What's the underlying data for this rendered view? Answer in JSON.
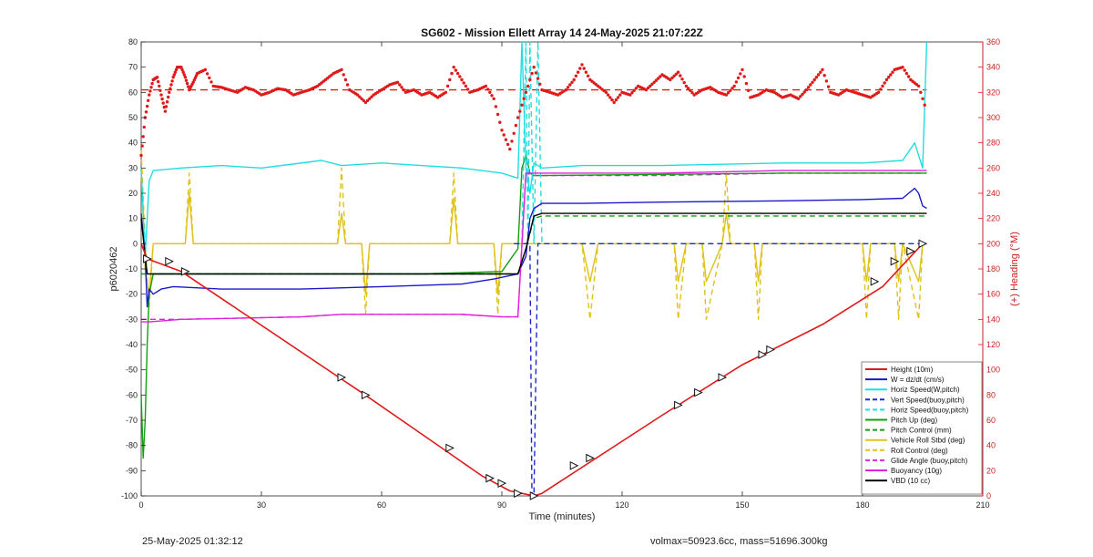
{
  "chart_data": {
    "type": "line",
    "title": "SG602 - Mission Ellett Array 14 24-May-2025 21:07:22Z",
    "xlabel": "Time (minutes)",
    "ylabel": "p6020462",
    "y2label": "(+) Heading (°M)",
    "xlim": [
      0,
      210
    ],
    "ylim": [
      -100,
      80
    ],
    "y2lim": [
      0,
      360
    ],
    "x_ticks": [
      0,
      30,
      60,
      90,
      120,
      150,
      180,
      210
    ],
    "y_ticks": [
      -100,
      -90,
      -80,
      -70,
      -60,
      -50,
      -40,
      -30,
      -20,
      -10,
      0,
      10,
      20,
      30,
      40,
      50,
      60,
      70,
      80
    ],
    "y2_ticks": [
      0,
      20,
      40,
      60,
      80,
      100,
      120,
      140,
      160,
      180,
      200,
      220,
      240,
      260,
      280,
      300,
      320,
      340,
      360
    ],
    "legend_position": "bottom-right",
    "heading_mean": 322,
    "heading": {
      "x": [
        0,
        1,
        2,
        3,
        4,
        5,
        6,
        7,
        8,
        9,
        10,
        11,
        12,
        13,
        14,
        16,
        18,
        20,
        22,
        24,
        26,
        28,
        30,
        32,
        34,
        36,
        38,
        40,
        42,
        44,
        46,
        48,
        50,
        52,
        54,
        56,
        58,
        60,
        62,
        64,
        66,
        68,
        70,
        72,
        74,
        76,
        78,
        80,
        82,
        84,
        86,
        88,
        90,
        92,
        94,
        96,
        98,
        100,
        102,
        104,
        106,
        108,
        110,
        112,
        114,
        116,
        118,
        120,
        122,
        124,
        126,
        128,
        130,
        132,
        134,
        136,
        138,
        140,
        142,
        144,
        146,
        148,
        150,
        152,
        154,
        156,
        158,
        160,
        162,
        164,
        166,
        168,
        170,
        172,
        174,
        176,
        178,
        180,
        182,
        184,
        186,
        188,
        190,
        192,
        194,
        196
      ],
      "y": [
        270,
        300,
        318,
        330,
        332,
        318,
        305,
        320,
        332,
        340,
        340,
        332,
        322,
        328,
        335,
        338,
        325,
        324,
        322,
        320,
        324,
        322,
        318,
        320,
        323,
        322,
        318,
        320,
        322,
        325,
        330,
        335,
        338,
        322,
        318,
        312,
        318,
        322,
        326,
        328,
        320,
        322,
        318,
        320,
        316,
        320,
        340,
        330,
        320,
        322,
        325,
        315,
        290,
        275,
        300,
        320,
        340,
        322,
        320,
        318,
        322,
        330,
        342,
        330,
        325,
        320,
        312,
        320,
        318,
        325,
        322,
        328,
        334,
        330,
        336,
        325,
        318,
        322,
        324,
        320,
        318,
        325,
        338,
        316,
        318,
        322,
        320,
        316,
        318,
        315,
        322,
        330,
        338,
        320,
        318,
        322,
        320,
        318,
        316,
        320,
        330,
        338,
        340,
        330,
        325,
        305
      ]
    },
    "series": [
      {
        "name": "Height (10m)",
        "color": "#e01a1a",
        "style": "solid",
        "x": [
          0,
          1.5,
          10,
          55,
          75,
          85,
          92,
          95,
          98,
          100,
          130,
          150,
          170,
          185,
          195
        ],
        "y": [
          0,
          -6,
          -11,
          -59,
          -81,
          -92,
          -98,
          -99,
          -100,
          -99,
          -68,
          -48,
          -32,
          -17,
          0
        ]
      },
      {
        "name": "W = dz/dt (cm/s)",
        "color": "#1a1acc",
        "style": "solid",
        "x": [
          0,
          1,
          1.5,
          2,
          3,
          5,
          8,
          20,
          40,
          60,
          80,
          88,
          94,
          96,
          97,
          98,
          100,
          110,
          130,
          160,
          180,
          190,
          193,
          194,
          195,
          196
        ],
        "y": [
          12,
          -5,
          -25,
          -18,
          -20,
          -18,
          -17,
          -18,
          -18,
          -17,
          -16,
          -14,
          -12,
          -5,
          10,
          14,
          16,
          16,
          16.5,
          17,
          17.5,
          18,
          22,
          20,
          15,
          14
        ]
      },
      {
        "name": "Horiz Speed(W,pitch)",
        "color": "#22dde0",
        "style": "solid",
        "x": [
          0,
          1,
          2,
          3,
          10,
          20,
          30,
          45,
          50,
          60,
          70,
          80,
          90,
          94,
          95,
          96,
          97,
          98,
          100,
          110,
          130,
          160,
          180,
          190,
          193,
          195,
          196
        ],
        "y": [
          30,
          -5,
          25,
          29,
          30,
          31,
          30,
          33,
          31,
          32,
          31,
          30,
          28,
          26,
          80,
          30,
          20,
          32,
          30,
          31,
          31,
          32,
          32,
          33,
          40,
          30,
          80
        ]
      },
      {
        "name": "Vert Speed(buoy,pitch)",
        "color": "#1a2acc",
        "style": "dashed",
        "x": [
          93,
          95,
          96,
          97,
          97.5,
          98,
          99,
          100,
          150,
          196
        ],
        "y": [
          0,
          0,
          0,
          0,
          -100,
          -100,
          0,
          0,
          0,
          0
        ]
      },
      {
        "name": "Horiz Speed(buoy,pitch)",
        "color": "#22dde0",
        "style": "dashed",
        "x": [
          95,
          96,
          96.5,
          97,
          98,
          99,
          100
        ],
        "y": [
          0,
          80,
          0,
          80,
          0,
          80,
          0
        ]
      },
      {
        "name": "Pitch Up (deg)",
        "color": "#11a011",
        "style": "solid",
        "x": [
          0,
          0.5,
          1,
          1.5,
          2,
          3,
          5,
          10,
          40,
          70,
          90,
          94,
          95,
          96,
          97,
          98,
          100,
          130,
          160,
          196
        ],
        "y": [
          -60,
          -85,
          -70,
          -40,
          -20,
          -12,
          -12,
          -12,
          -12,
          -12,
          -11,
          -2,
          30,
          35,
          28,
          27,
          27,
          27.5,
          28,
          28
        ]
      },
      {
        "name": "Pitch Control (mm)",
        "color": "#11a011",
        "style": "dashed",
        "x": [
          0,
          2,
          10,
          40,
          70,
          94,
          96,
          98,
          100,
          130,
          160,
          196
        ],
        "y": [
          -12,
          -12,
          -12,
          -12,
          -12,
          -12,
          -2,
          10,
          11,
          11,
          11,
          11
        ]
      },
      {
        "name": "Vehicle Roll Stbd (deg)",
        "color": "#e0c21a",
        "style": "solid",
        "x": [
          0,
          1,
          2,
          3,
          8,
          11,
          12,
          13,
          40,
          49,
          50,
          51,
          55,
          56,
          57,
          77,
          78,
          79,
          88,
          89,
          90,
          92,
          95,
          98,
          100,
          110,
          112,
          114,
          130,
          133,
          134,
          136,
          140,
          141,
          145,
          146,
          147,
          153,
          154,
          155,
          180,
          181,
          182,
          188,
          189,
          190,
          194,
          195,
          196
        ],
        "y": [
          30,
          -10,
          -20,
          0,
          0,
          0,
          20,
          0,
          0,
          0,
          12,
          0,
          0,
          -20,
          0,
          0,
          18,
          0,
          0,
          -20,
          0,
          0,
          0,
          0,
          0,
          0,
          -15,
          0,
          0,
          0,
          -15,
          0,
          0,
          -15,
          0,
          12,
          0,
          0,
          -15,
          0,
          0,
          -15,
          0,
          0,
          -15,
          0,
          -15,
          0,
          0
        ]
      },
      {
        "name": "Roll Control (deg)",
        "color": "#e0c21a",
        "style": "dashed",
        "x": [
          0,
          1,
          2,
          3,
          8,
          11,
          12,
          13,
          40,
          49,
          50,
          51,
          55,
          56,
          57,
          77,
          78,
          79,
          88,
          89,
          90,
          92,
          95,
          98,
          100,
          110,
          112,
          114,
          130,
          133,
          134,
          136,
          140,
          141,
          145,
          146,
          147,
          153,
          154,
          155,
          180,
          181,
          182,
          188,
          189,
          190,
          194,
          195,
          196
        ],
        "y": [
          37,
          0,
          -25,
          0,
          0,
          0,
          28,
          0,
          0,
          0,
          30,
          0,
          0,
          -28,
          0,
          0,
          28,
          0,
          0,
          -28,
          0,
          0,
          0,
          0,
          0,
          0,
          -30,
          0,
          0,
          0,
          -30,
          0,
          0,
          -30,
          0,
          28,
          0,
          0,
          -30,
          0,
          0,
          -30,
          0,
          0,
          -30,
          0,
          -30,
          0,
          0
        ]
      },
      {
        "name": "Glide Angle (buoy,pitch)",
        "color": "#dd22dd",
        "style": "dashed",
        "x": [
          0,
          2,
          10,
          40,
          50,
          80,
          90,
          94,
          96,
          98,
          100,
          130,
          160,
          194,
          196
        ],
        "y": [
          -30,
          -30,
          -30,
          -29,
          -28,
          -28,
          -29,
          -29,
          28,
          27,
          27,
          27,
          28,
          28,
          28
        ]
      },
      {
        "name": "Buoyancy (10g)",
        "color": "#dd22dd",
        "style": "solid",
        "x": [
          0,
          2,
          10,
          40,
          50,
          80,
          90,
          94,
          96,
          98,
          100,
          130,
          160,
          194,
          196
        ],
        "y": [
          -31,
          -31,
          -30,
          -29,
          -28,
          -28,
          -29,
          -29,
          28,
          28,
          28,
          28,
          29,
          29,
          29
        ]
      },
      {
        "name": "VBD (10 cc)",
        "color": "#000000",
        "style": "solid",
        "x": [
          0,
          1,
          1.5,
          3,
          10,
          40,
          70,
          94,
          96,
          98,
          100,
          130,
          160,
          196
        ],
        "y": [
          10,
          -5,
          -12,
          -12,
          -12,
          -12,
          -12,
          -12,
          -2,
          11,
          12,
          12,
          12,
          12
        ]
      }
    ],
    "height_markers": [
      {
        "x": 1.5,
        "y": -6
      },
      {
        "x": 7,
        "y": -7
      },
      {
        "x": 11,
        "y": -11
      },
      {
        "x": 50,
        "y": -53
      },
      {
        "x": 56,
        "y": -60
      },
      {
        "x": 77,
        "y": -81
      },
      {
        "x": 87,
        "y": -93
      },
      {
        "x": 90,
        "y": -95
      },
      {
        "x": 94,
        "y": -99
      },
      {
        "x": 98,
        "y": -100
      },
      {
        "x": 108,
        "y": -88
      },
      {
        "x": 112,
        "y": -85
      },
      {
        "x": 134,
        "y": -64
      },
      {
        "x": 139,
        "y": -59
      },
      {
        "x": 145,
        "y": -53
      },
      {
        "x": 155,
        "y": -44
      },
      {
        "x": 157,
        "y": -42
      },
      {
        "x": 183,
        "y": -15
      },
      {
        "x": 188,
        "y": -7
      },
      {
        "x": 192,
        "y": -3
      },
      {
        "x": 195,
        "y": 0
      }
    ]
  },
  "footer": {
    "timestamp": "25-May-2025 01:32:12",
    "volmass": "volmax=50923.6cc, mass=51696.300kg"
  }
}
